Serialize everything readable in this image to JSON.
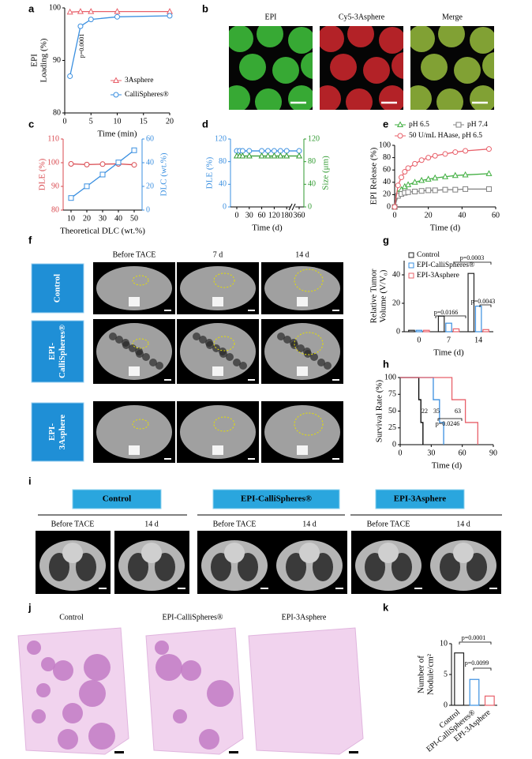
{
  "panel_labels": [
    "a",
    "b",
    "c",
    "d",
    "e",
    "f",
    "g",
    "h",
    "i",
    "j",
    "k"
  ],
  "chart_data": [
    {
      "type": "line",
      "xlabel": "Time (min)",
      "ylabel": [
        "EPI",
        "Loading (%)"
      ],
      "x": [
        1,
        3,
        5,
        10,
        20
      ],
      "xlim": [
        0,
        20
      ],
      "xticks": [
        0,
        5,
        10,
        15,
        20
      ],
      "ylim": [
        80,
        100
      ],
      "yticks": [
        80,
        90,
        100
      ],
      "series": [
        {
          "name": "3Asphere",
          "color": "#e8606a",
          "marker": "triangle",
          "values": [
            99.2,
            99.3,
            99.3,
            99.3,
            99.3
          ]
        },
        {
          "name": "CalliSpheres®",
          "color": "#3a8fe0",
          "marker": "circle",
          "values": [
            87,
            96.5,
            97.8,
            98.3,
            98.5
          ]
        }
      ],
      "annotations": [
        "p=0.0001"
      ]
    },
    {
      "type": "line",
      "xlabel": "Theoretical DLC (wt.%)",
      "ylabel": [
        "DLE (%)"
      ],
      "y2label": [
        "DLC (wt.%)"
      ],
      "y_color": "#d9494f",
      "y2_color": "#3a8fe0",
      "x": [
        10,
        20,
        30,
        40,
        50
      ],
      "xlim": [
        5,
        55
      ],
      "xticks": [
        10,
        20,
        30,
        40,
        50
      ],
      "ylim": [
        80,
        110
      ],
      "yticks": [
        80,
        90,
        100,
        110
      ],
      "y2lim": [
        0,
        60
      ],
      "y2ticks": [
        0,
        20,
        40,
        60
      ],
      "series": [
        {
          "color": "#d9494f",
          "marker": "circle",
          "values": [
            99.5,
            99.2,
            99.4,
            99.5,
            99.1
          ]
        },
        {
          "color": "#3a8fe0",
          "marker": "square",
          "axis": "y2",
          "values": [
            10.2,
            20.1,
            30,
            40.2,
            50.5
          ]
        }
      ]
    },
    {
      "type": "line",
      "axis_break": true,
      "xlabel": "Time (d)",
      "ylabel": [
        "DLE (%)"
      ],
      "y2label": [
        "Size (μm)"
      ],
      "y_color": "#3a8fe0",
      "y2_color": "#2f9a2f",
      "x": [
        0,
        7,
        14,
        30,
        60,
        90,
        120,
        150,
        180,
        360
      ],
      "xlim": [
        0,
        360
      ],
      "xticks": [
        0,
        30,
        60,
        120,
        180,
        360
      ],
      "ylim": [
        0,
        120
      ],
      "yticks": [
        0,
        40,
        80,
        120
      ],
      "y2lim": [
        0,
        120
      ],
      "y2ticks": [
        0,
        40,
        80,
        120
      ],
      "series": [
        {
          "color": "#3a8fe0",
          "marker": "circle",
          "values": [
            99,
            99,
            99,
            99,
            99,
            99,
            99,
            99,
            99,
            99
          ]
        },
        {
          "color": "#2f9a2f",
          "marker": "triangle",
          "axis": "y2",
          "values": [
            90,
            90,
            90,
            90,
            90,
            90,
            90,
            90,
            90,
            90
          ]
        }
      ]
    },
    {
      "type": "line",
      "xlabel": "Time (d)",
      "ylabel": [
        "EPI Release (%)"
      ],
      "x": [
        0,
        2,
        4,
        6,
        8,
        12,
        16,
        20,
        24,
        30,
        36,
        42,
        56
      ],
      "xlim": [
        0,
        60
      ],
      "xticks": [
        0,
        20,
        40,
        60
      ],
      "ylim": [
        0,
        100
      ],
      "yticks": [
        0,
        20,
        40,
        60,
        80,
        100
      ],
      "series": [
        {
          "name": "pH 6.5",
          "color": "#3fae3f",
          "marker": "triangle",
          "values": [
            0,
            22,
            28,
            33,
            36,
            40,
            43,
            45,
            47,
            49,
            51,
            52,
            54
          ]
        },
        {
          "name": "pH 7.4",
          "color": "#808080",
          "marker": "square",
          "values": [
            0,
            18,
            21,
            23,
            24,
            25,
            26,
            27,
            27,
            28,
            28,
            29,
            29
          ]
        },
        {
          "name": "50 U/mL HAase, pH 6.5",
          "color": "#e8606a",
          "marker": "circle",
          "values": [
            0,
            35,
            48,
            57,
            63,
            70,
            76,
            80,
            83,
            86,
            89,
            91,
            94
          ]
        }
      ]
    },
    {
      "type": "bar",
      "xlabel": "Time (d)",
      "ylabel": [
        "Relative Tumor",
        "Volume (V/V₀)"
      ],
      "categories": [
        "0",
        "7",
        "14"
      ],
      "ylim": [
        0,
        50
      ],
      "yticks": [
        0,
        20,
        40
      ],
      "series": [
        {
          "name": "Control",
          "color": "#222222",
          "values": [
            1,
            11,
            41
          ]
        },
        {
          "name": "EPI-CalliSpheres®",
          "color": "#3a8fe0",
          "values": [
            1,
            6,
            18
          ]
        },
        {
          "name": "EPI-3Asphere",
          "color": "#e8606a",
          "values": [
            1,
            2,
            1.5
          ]
        }
      ],
      "annotations": [
        "p=0.0003",
        "p=0.0043",
        "p=0.0166"
      ]
    },
    {
      "type": "line",
      "step": true,
      "xlabel": "Time (d)",
      "ylabel": [
        "Survival Rate (%)"
      ],
      "xlim": [
        0,
        90
      ],
      "xticks": [
        0,
        30,
        60,
        90
      ],
      "ylim": [
        0,
        100
      ],
      "yticks": [
        0,
        25,
        50,
        75,
        100
      ],
      "series": [
        {
          "color": "#000000",
          "x": [
            0,
            18,
            20,
            22
          ],
          "values": [
            100,
            67,
            33,
            0
          ]
        },
        {
          "color": "#3a8fe0",
          "x": [
            0,
            32,
            38,
            42
          ],
          "values": [
            100,
            67,
            33,
            0
          ]
        },
        {
          "color": "#e8606a",
          "x": [
            0,
            50,
            63,
            75
          ],
          "values": [
            100,
            67,
            33,
            0
          ]
        }
      ],
      "annotations": [
        "22",
        "35",
        "63",
        "p=0.0246"
      ]
    },
    {
      "type": "bar",
      "ylabel": [
        "Number of",
        "Nodule/cm²"
      ],
      "categories": [
        "Control",
        "EPI-CalliSpheres®",
        "EPI-3Asphere"
      ],
      "values": [
        8.5,
        4.2,
        1.5
      ],
      "colors": [
        "#222222",
        "#3a8fe0",
        "#e8606a"
      ],
      "ylim": [
        0,
        10
      ],
      "yticks": [
        0,
        5,
        10
      ],
      "annotations": [
        "p=0.0001",
        "p=0.0099"
      ]
    }
  ],
  "image_panels": {
    "b": {
      "titles": [
        "EPI",
        "Cy5-3Asphere",
        "Merge"
      ]
    },
    "f": {
      "columns": [
        "Before TACE",
        "7 d",
        "14 d"
      ],
      "rows": [
        [
          "Control"
        ],
        [
          "EPI-",
          "CalliSpheres®"
        ],
        [
          "EPI-",
          "3Asphere"
        ]
      ]
    },
    "i": {
      "groups": [
        "Control",
        "EPI-CalliSpheres®",
        "EPI-3Asphere"
      ],
      "columns": [
        "Before TACE",
        "14 d",
        "Before TACE",
        "14 d",
        "Before TACE",
        "14 d"
      ]
    },
    "j": {
      "titles": [
        "Control",
        "EPI-CalliSpheres®",
        "EPI-3Asphere"
      ]
    }
  }
}
